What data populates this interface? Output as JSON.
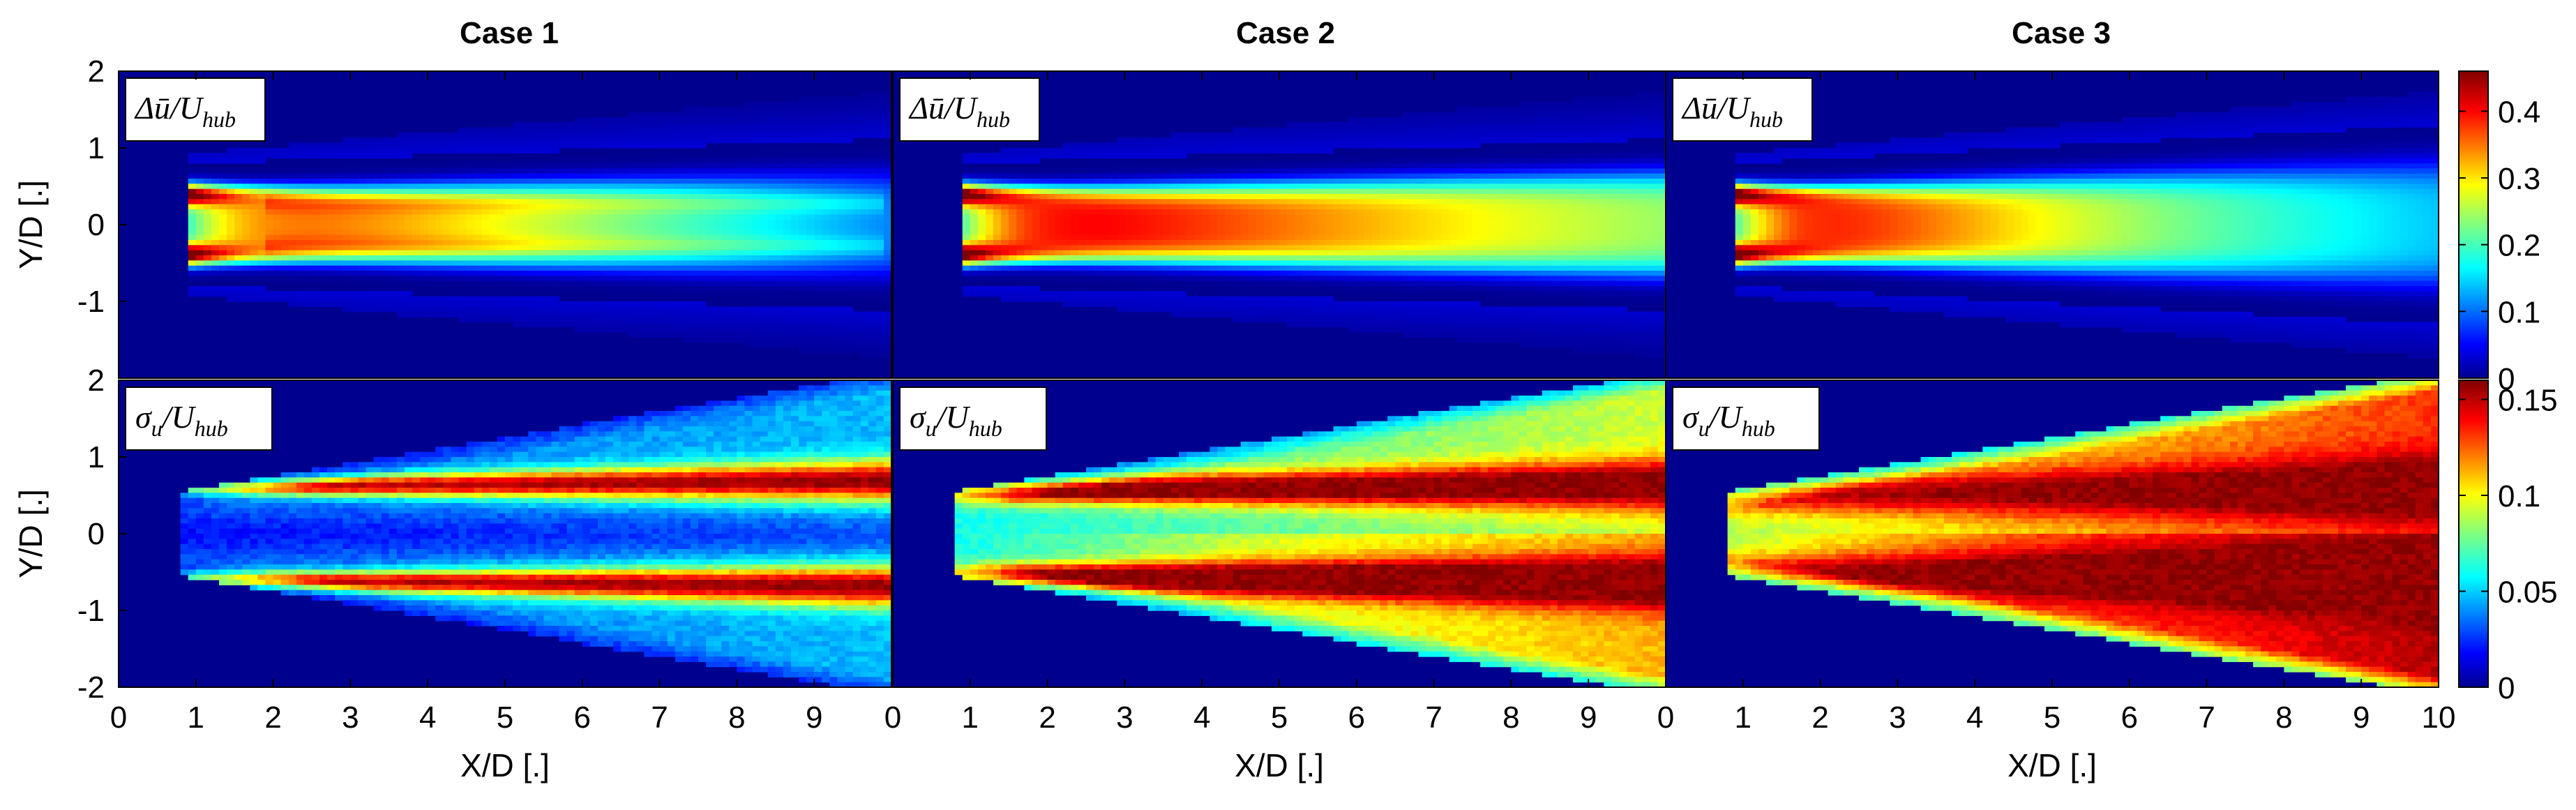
{
  "chart_data": {
    "type": "heatmap",
    "panels_layout": "2 rows x 3 columns",
    "column_titles": [
      "Case 1",
      "Case 2",
      "Case 3"
    ],
    "row_annotations": [
      "Δū/U",
      "σ"
    ],
    "row_annotation_subscripts": [
      "hub",
      "u"
    ],
    "xlabel": "X/D [.]",
    "ylabel": "Y/D [.]",
    "xlim": [
      0,
      10
    ],
    "ylim": [
      -2,
      2
    ],
    "xticks": [
      "0",
      "1",
      "2",
      "3",
      "4",
      "5",
      "6",
      "7",
      "8",
      "9",
      "10"
    ],
    "xticks_inner": [
      "0",
      "1",
      "2",
      "3",
      "4",
      "5",
      "6",
      "7",
      "8",
      "9"
    ],
    "yticks_top": [
      "2",
      "1",
      "0",
      "-1"
    ],
    "yticks_bottom": [
      "2",
      "1",
      "0",
      "-1",
      "-2"
    ],
    "colorbars": [
      {
        "row": "Δū/U_hub",
        "range": [
          0,
          0.46
        ],
        "ticks": [
          "0.4",
          "0.3",
          "0.2",
          "0.1",
          "0"
        ],
        "tick_values": [
          0.4,
          0.3,
          0.2,
          0.1,
          0
        ],
        "colormap": "jet"
      },
      {
        "row": "σu/U_hub",
        "range": [
          0,
          0.16
        ],
        "ticks": [
          "0.15",
          "0.1",
          "0.05",
          "0"
        ],
        "tick_values": [
          0.15,
          0.1,
          0.05,
          0
        ],
        "colormap": "jet"
      }
    ],
    "panels": [
      {
        "case": "Case 1",
        "quantity": "Δū/U_hub",
        "peak": 0.46,
        "wake_start_xd": 0.9,
        "decay": "slow",
        "notes": "strong deficit persists to X/D=10 with max on centerline edges near X/D 1-2"
      },
      {
        "case": "Case 2",
        "quantity": "Δū/U_hub",
        "peak": 0.46,
        "wake_start_xd": 0.9,
        "decay": "medium",
        "notes": "deficit ~0.4 up to X/D~5, then decays to ~0.25 at X/D 9"
      },
      {
        "case": "Case 3",
        "quantity": "Δū/U_hub",
        "peak": 0.46,
        "wake_start_xd": 0.9,
        "decay": "fast",
        "notes": "max deficit around X/D 2-3, decays to ~0.2 by X/D 7"
      },
      {
        "case": "Case 1",
        "quantity": "σu/U_hub",
        "peak": 0.16,
        "wake_start_xd": 0.9,
        "notes": "two shear layers at Y/D≈±0.6 with peaks ~0.15, low-turbulence core"
      },
      {
        "case": "Case 2",
        "quantity": "σu/U_hub",
        "peak": 0.15,
        "wake_start_xd": 0.9,
        "notes": "shear layers peak near X/D 2-3 then broaden, ~0.12-0.14 downstream"
      },
      {
        "case": "Case 3",
        "quantity": "σu/U_hub",
        "peak": 0.16,
        "wake_start_xd": 0.9,
        "notes": "high turbulence ~0.12-0.15 across broad wake"
      }
    ]
  },
  "colors": {
    "background_field": "#00008f",
    "frame": "#000000"
  }
}
